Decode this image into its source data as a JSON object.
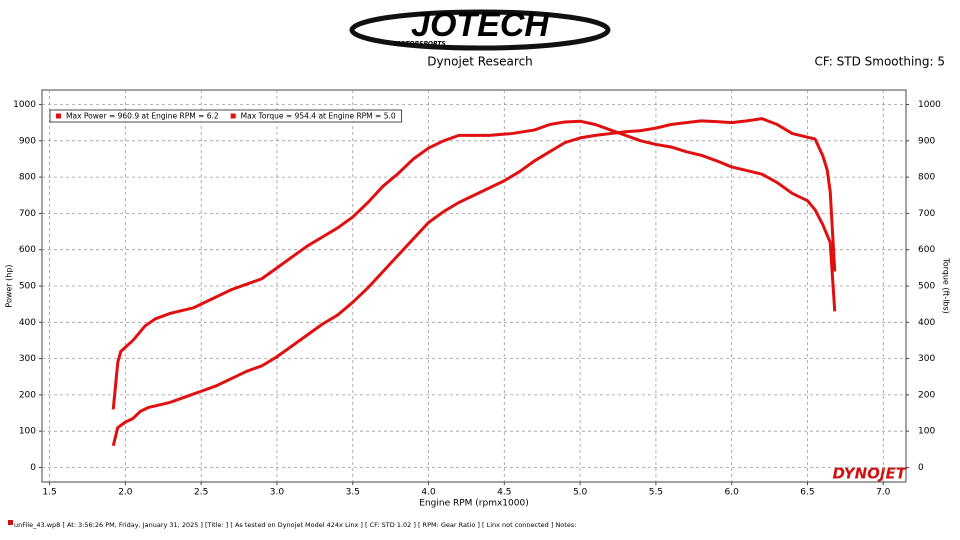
{
  "header": {
    "logo": "JOTECH",
    "logo_sub": "MOTORSPORTS",
    "subtitle": "Dynojet Research",
    "settings": "CF: STD Smoothing: 5"
  },
  "chart_data": {
    "type": "line",
    "xlabel": "Engine RPM (rpmx1000)",
    "ylabel": "Power (hp)",
    "y2label": "Torque (ft-lbs)",
    "xlim": [
      1.45,
      7.15
    ],
    "xticks": [
      1.5,
      {
        "value": 2,
        "label": "2.0"
      },
      2.5,
      {
        "value": 3,
        "label": "3.0"
      },
      3.5,
      {
        "value": 4,
        "label": "4.0"
      },
      4.5,
      {
        "value": 5,
        "label": "5.0"
      },
      5.5,
      {
        "value": 6,
        "label": "6.0"
      },
      6.5,
      {
        "value": 7,
        "label": "7.0"
      }
    ],
    "ylim": [
      -40,
      1040
    ],
    "yticks": [
      0,
      100,
      200,
      300,
      400,
      500,
      600,
      700,
      800,
      900,
      1000
    ],
    "y2lim": [
      -40,
      1040
    ],
    "y2ticks": [
      0,
      100,
      200,
      300,
      400,
      500,
      600,
      700,
      800,
      900,
      1000
    ],
    "grid": true,
    "legend": "top-left",
    "series": [
      {
        "name": "Max Power = 960.9 at Engine RPM = 6.2",
        "color": "#e01010",
        "x": [
          1.92,
          1.95,
          2.0,
          2.05,
          2.1,
          2.15,
          2.2,
          2.3,
          2.4,
          2.5,
          2.6,
          2.7,
          2.8,
          2.9,
          3.0,
          3.1,
          3.2,
          3.3,
          3.4,
          3.5,
          3.6,
          3.7,
          3.8,
          3.9,
          4.0,
          4.1,
          4.2,
          4.3,
          4.4,
          4.5,
          4.6,
          4.7,
          4.8,
          4.9,
          5.0,
          5.1,
          5.2,
          5.3,
          5.4,
          5.5,
          5.6,
          5.7,
          5.8,
          5.9,
          6.0,
          6.1,
          6.2,
          6.3,
          6.4,
          6.5,
          6.55,
          6.6,
          6.63,
          6.65,
          6.68
        ],
        "values": [
          60,
          110,
          125,
          135,
          155,
          165,
          170,
          180,
          195,
          210,
          225,
          245,
          265,
          280,
          305,
          335,
          365,
          395,
          420,
          455,
          495,
          540,
          585,
          630,
          675,
          705,
          730,
          750,
          770,
          790,
          815,
          845,
          870,
          895,
          908,
          915,
          920,
          925,
          928,
          935,
          945,
          950,
          955,
          953,
          950,
          955,
          961,
          945,
          920,
          910,
          905,
          860,
          820,
          760,
          540
        ]
      },
      {
        "name": "Max Torque = 954.4 at Engine RPM = 5.0",
        "color": "#e01010",
        "axis": "y2",
        "x": [
          1.92,
          1.95,
          1.97,
          2.05,
          2.13,
          2.2,
          2.3,
          2.45,
          2.55,
          2.7,
          2.8,
          2.9,
          3.0,
          3.1,
          3.2,
          3.3,
          3.4,
          3.5,
          3.6,
          3.7,
          3.8,
          3.9,
          4.0,
          4.1,
          4.2,
          4.4,
          4.55,
          4.7,
          4.8,
          4.9,
          5.0,
          5.1,
          5.2,
          5.3,
          5.4,
          5.5,
          5.6,
          5.7,
          5.8,
          5.9,
          6.0,
          6.1,
          6.2,
          6.3,
          6.4,
          6.5,
          6.55,
          6.6,
          6.65,
          6.68
        ],
        "values": [
          160,
          290,
          320,
          350,
          390,
          410,
          425,
          440,
          460,
          490,
          505,
          520,
          550,
          580,
          610,
          635,
          660,
          690,
          730,
          775,
          810,
          850,
          880,
          900,
          915,
          915,
          920,
          930,
          945,
          952,
          954,
          945,
          930,
          915,
          900,
          890,
          883,
          870,
          860,
          845,
          828,
          818,
          808,
          785,
          755,
          735,
          710,
          670,
          620,
          430
        ]
      }
    ],
    "watermark": "DYNOJET"
  },
  "footer": "unFile_43.wp8 [ At: 3:56:26 PM, Friday, January 31, 2025 ] [Title: ] [ As tested on Dynojet Model 424x Linx ] [ CF: STD 1.02 ] [ RPM: Gear Ratio ] [ Linx not connected ] Notes:"
}
